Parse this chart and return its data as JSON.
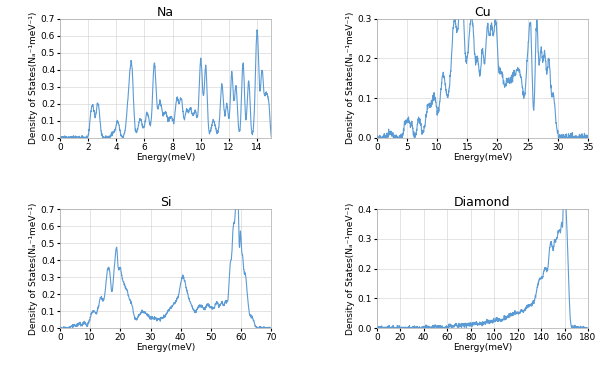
{
  "panels": [
    {
      "title": "Na",
      "xlabel": "Energy(meV)",
      "ylabel": "Density of States(Nₐ⁻¹meV⁻¹)",
      "xlim": [
        0,
        15
      ],
      "ylim": [
        0,
        0.7
      ],
      "xticks": [
        0,
        2,
        4,
        6,
        8,
        10,
        12,
        14
      ],
      "yticks": [
        0,
        0.1,
        0.2,
        0.3,
        0.4,
        0.5,
        0.6,
        0.7
      ]
    },
    {
      "title": "Cu",
      "xlabel": "Energy(meV)",
      "ylabel": "Density of States(Nₐ⁻¹meV⁻¹)",
      "xlim": [
        0,
        35
      ],
      "ylim": [
        0,
        0.3
      ],
      "xticks": [
        0,
        5,
        10,
        15,
        20,
        25,
        30,
        35
      ],
      "yticks": [
        0,
        0.1,
        0.2,
        0.3
      ]
    },
    {
      "title": "Si",
      "xlabel": "Energy(meV)",
      "ylabel": "Density of States(Nₐ⁻¹meV⁻¹)",
      "xlim": [
        0,
        70
      ],
      "ylim": [
        0,
        0.7
      ],
      "xticks": [
        0,
        10,
        20,
        30,
        40,
        50,
        60,
        70
      ],
      "yticks": [
        0,
        0.1,
        0.2,
        0.3,
        0.4,
        0.5,
        0.6,
        0.7
      ]
    },
    {
      "title": "Diamond",
      "xlabel": "Energy(meV)",
      "ylabel": "Density of States(Nₐ⁻¹meV⁻¹)",
      "xlim": [
        0,
        180
      ],
      "ylim": [
        0,
        0.4
      ],
      "xticks": [
        0,
        20,
        40,
        60,
        80,
        100,
        120,
        140,
        160,
        180
      ],
      "yticks": [
        0,
        0.1,
        0.2,
        0.3,
        0.4
      ]
    }
  ],
  "line_color": "#5B9BD5",
  "line_width": 0.8,
  "background_color": "#ffffff",
  "grid_color": "#d0d0d0",
  "title_fontsize": 9,
  "label_fontsize": 6.5,
  "tick_fontsize": 6.5
}
